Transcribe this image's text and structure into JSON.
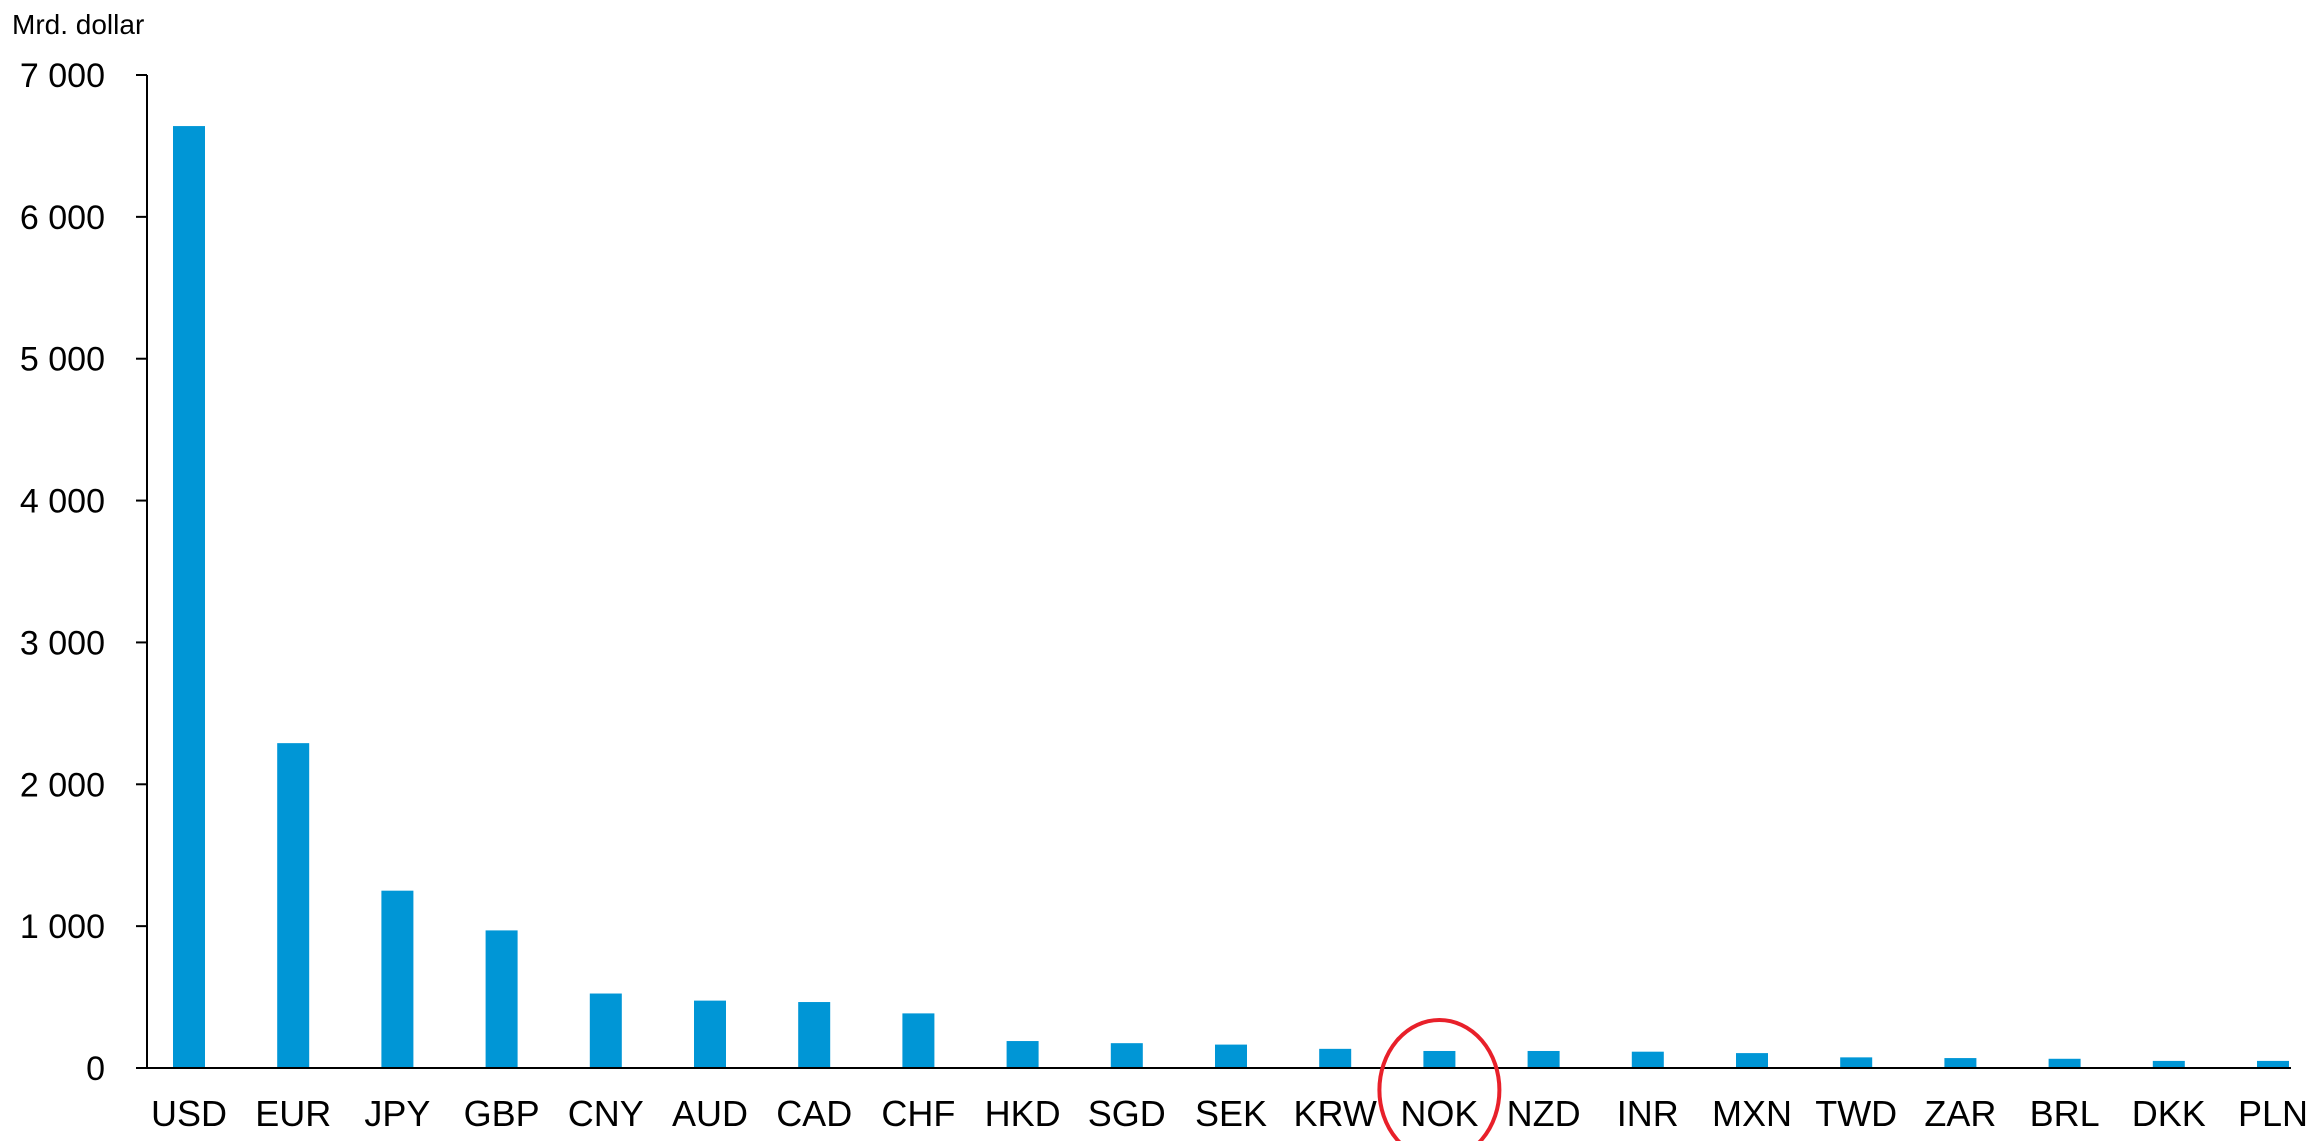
{
  "chart_data": {
    "type": "bar",
    "ylabel": "Mrd. dollar",
    "ylim": [
      0,
      7000
    ],
    "yticks": [
      0,
      1000,
      2000,
      3000,
      4000,
      5000,
      6000,
      7000
    ],
    "ytick_labels": [
      "0",
      "1 000",
      "2 000",
      "3 000",
      "4 000",
      "5 000",
      "6 000",
      "7 000"
    ],
    "categories": [
      "USD",
      "EUR",
      "JPY",
      "GBP",
      "CNY",
      "AUD",
      "CAD",
      "CHF",
      "HKD",
      "SGD",
      "SEK",
      "KRW",
      "NOK",
      "NZD",
      "INR",
      "MXN",
      "TWD",
      "ZAR",
      "BRL",
      "DKK",
      "PLN"
    ],
    "values": [
      6640,
      2290,
      1250,
      970,
      525,
      475,
      465,
      385,
      190,
      175,
      165,
      135,
      120,
      120,
      115,
      105,
      75,
      70,
      65,
      50,
      50
    ],
    "bar_color": "#0096d6",
    "grid": false,
    "highlight": {
      "category": "NOK",
      "shape": "circle",
      "color": "#e8202a"
    }
  }
}
